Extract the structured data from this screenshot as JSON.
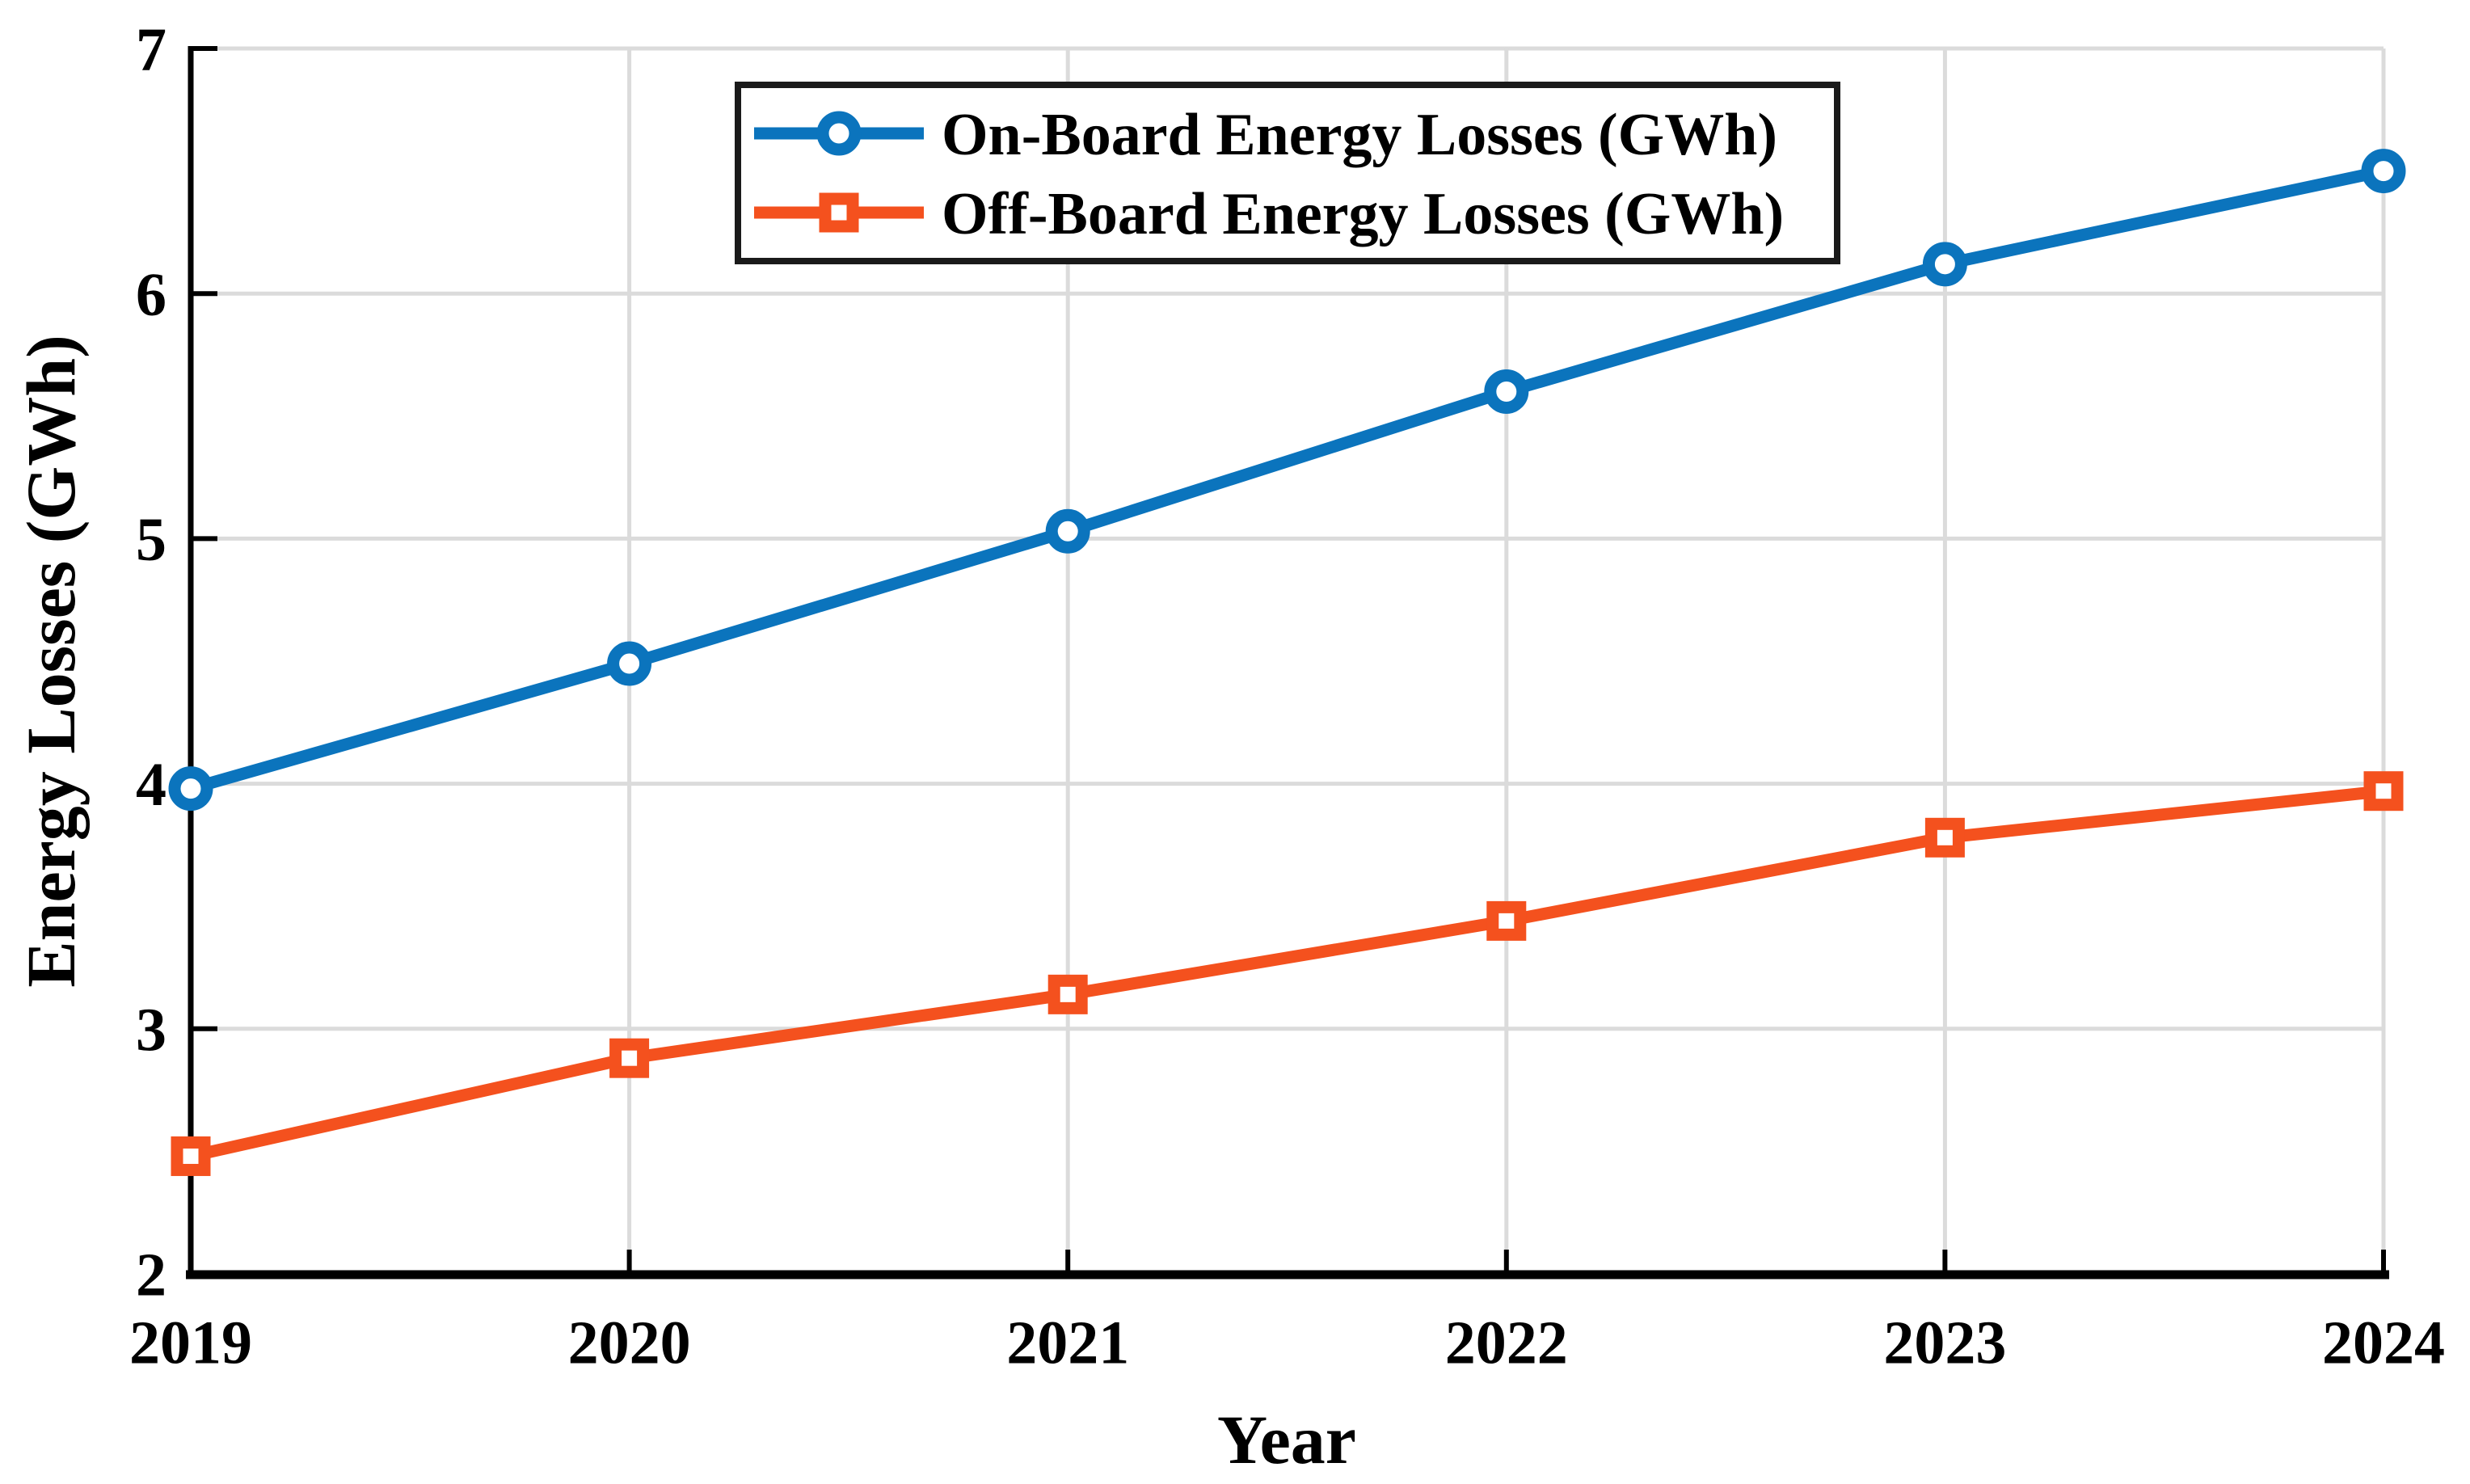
{
  "figure": {
    "background": "#ffffff",
    "text_color": "#000000",
    "grid_color": "#DBDBDB",
    "spine_color": "#000000",
    "legend_border_color": "#1a1a1a"
  },
  "chart_data": {
    "type": "line",
    "title": "",
    "xlabel": "Year",
    "ylabel": "Energy Losses (GWh)",
    "categories": [
      "2019",
      "2020",
      "2021",
      "2022",
      "2023",
      "2024"
    ],
    "x": [
      2019,
      2020,
      2021,
      2022,
      2023,
      2024
    ],
    "y_ticks": [
      2,
      3,
      4,
      5,
      6,
      7
    ],
    "ylim": [
      2,
      7
    ],
    "grid": true,
    "legend_position": "top-center",
    "series": [
      {
        "name": "On-Board Energy Losses (GWh)",
        "color": "#0B74BD",
        "marker": "circle",
        "values": [
          3.98,
          4.49,
          5.03,
          5.6,
          6.12,
          6.5
        ]
      },
      {
        "name": "Off-Board Energy Losses (GWh)",
        "color": "#F4511E",
        "marker": "square",
        "values": [
          2.48,
          2.88,
          3.14,
          3.44,
          3.78,
          3.97
        ]
      }
    ]
  }
}
